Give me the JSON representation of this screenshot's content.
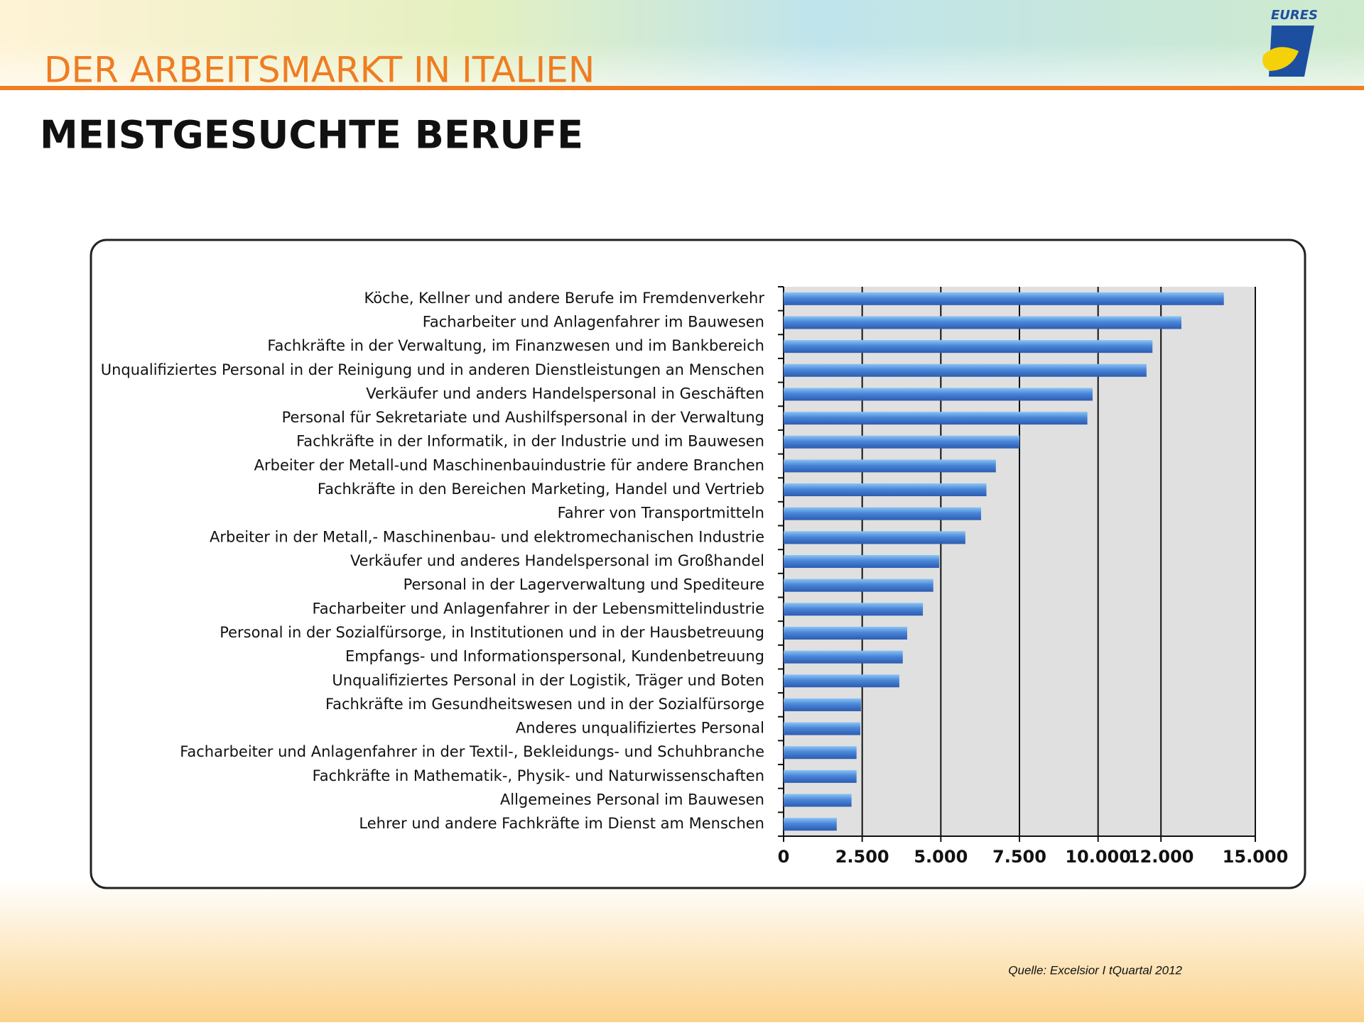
{
  "header": {
    "title": "DER ARBEITSMARKT IN ITALIEN",
    "logo_text": "EURES"
  },
  "chart_data": {
    "type": "hbar",
    "title": "MEISTGESUCHTE BERUFE",
    "categories": [
      "Köche, Kellner und andere Berufe im Fremdenverkehr",
      "Facharbeiter und Anlagenfahrer im Bauwesen",
      "Fachkräfte in der Verwaltung, im Finanzwesen und im Bankbereich",
      "Unqualifiziertes Personal in der Reinigung und in anderen Dienstleistungen an Menschen",
      "Verkäufer und anders Handelspersonal in Geschäften",
      "Personal für Sekretariate und Aushilfspersonal in der Verwaltung",
      "Fachkräfte in der Informatik, in der Industrie und im Bauwesen",
      "Arbeiter der Metall-und Maschinenbauindustrie für andere Branchen",
      "Fachkräfte in den Bereichen Marketing, Handel und Vertrieb",
      "Fahrer von Transportmitteln",
      "Arbeiter in der Metall,- Maschinenbau- und elektromechanischen Industrie",
      "Verkäufer und anderes Handelspersonal im Großhandel",
      "Personal in der Lagerverwaltung und Spediteure",
      "Facharbeiter und Anlagenfahrer in der Lebensmittelindustrie",
      "Personal in der Sozialfürsorge, in Institutionen und in der Hausbetreuung",
      "Empfangs- und Informationspersonal, Kundenbetreuung",
      "Unqualifiziertes Personal in der Logistik, Träger und Boten",
      "Fachkräfte im Gesundheitswesen und in der Sozialfürsorge",
      "Anderes unqualifiziertes Personal",
      "Facharbeiter und Anlagenfahrer in der Textil-, Bekleidungs- und Schuhbranche",
      "Fachkräfte in Mathematik-, Physik- und Naturwissenschaften",
      "Allgemeines Personal im Bauwesen",
      "Lehrer und andere Fachkräfte im Dienst am Menschen"
    ],
    "values": [
      14000,
      12650,
      11730,
      11540,
      9825,
      9660,
      7500,
      6750,
      6450,
      6280,
      5780,
      4950,
      4760,
      4430,
      3930,
      3790,
      3680,
      2460,
      2440,
      2320,
      2320,
      2160,
      1690
    ],
    "color": "#4a86d8",
    "xlim": [
      0,
      15000
    ],
    "xticks": [
      0,
      {
        "value": 2500,
        "label": "2.500"
      },
      {
        "value": 5000,
        "label": "5.000"
      },
      {
        "value": 7500,
        "label": "7.500"
      },
      {
        "value": 10000,
        "label": "10.000"
      },
      {
        "value": 12000,
        "label": "12.000"
      },
      {
        "value": 15000,
        "label": "15.000"
      }
    ],
    "grid": true,
    "source": "Quelle: Excelsior I tQuartal 2012"
  }
}
